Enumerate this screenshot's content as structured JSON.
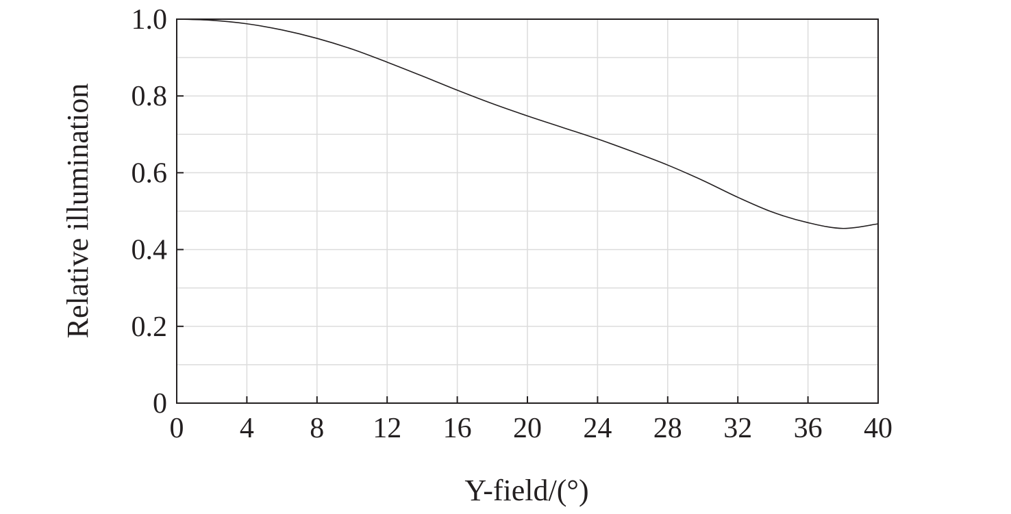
{
  "chart_data": {
    "type": "line",
    "title": "",
    "xlabel": "Y-field/(°)",
    "ylabel": "Relative illumination",
    "xlim": [
      0,
      40
    ],
    "ylim": [
      0,
      1.0
    ],
    "x_ticks": [
      0,
      4,
      8,
      12,
      16,
      20,
      24,
      28,
      32,
      36,
      40
    ],
    "x_tick_labels": [
      "0",
      "4",
      "8",
      "12",
      "16",
      "20",
      "24",
      "28",
      "32",
      "36",
      "40"
    ],
    "y_ticks": [
      0,
      0.2,
      0.4,
      0.6,
      0.8,
      1.0
    ],
    "y_tick_labels": [
      "0",
      "0.2",
      "0.4",
      "0.6",
      "0.8",
      "1.0"
    ],
    "grid": true,
    "legend": false,
    "series": [
      {
        "color": "#231f20",
        "x": [
          0,
          2,
          4,
          6,
          8,
          10,
          12,
          14,
          16,
          18,
          20,
          22,
          24,
          26,
          28,
          30,
          32,
          34,
          36,
          38,
          40
        ],
        "y": [
          1.0,
          0.997,
          0.988,
          0.972,
          0.95,
          0.922,
          0.888,
          0.852,
          0.815,
          0.78,
          0.748,
          0.718,
          0.688,
          0.655,
          0.62,
          0.58,
          0.536,
          0.497,
          0.47,
          0.455,
          0.467
        ]
      }
    ]
  }
}
